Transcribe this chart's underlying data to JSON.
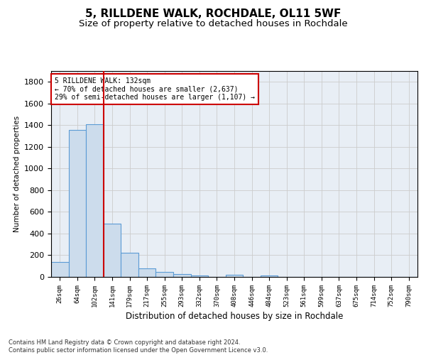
{
  "title": "5, RILLDENE WALK, ROCHDALE, OL11 5WF",
  "subtitle": "Size of property relative to detached houses in Rochdale",
  "xlabel": "Distribution of detached houses by size in Rochdale",
  "ylabel": "Number of detached properties",
  "bar_labels": [
    "26sqm",
    "64sqm",
    "102sqm",
    "141sqm",
    "179sqm",
    "217sqm",
    "255sqm",
    "293sqm",
    "332sqm",
    "370sqm",
    "408sqm",
    "446sqm",
    "484sqm",
    "523sqm",
    "561sqm",
    "599sqm",
    "637sqm",
    "675sqm",
    "714sqm",
    "752sqm",
    "790sqm"
  ],
  "bar_values": [
    135,
    1355,
    1410,
    490,
    225,
    78,
    45,
    28,
    12,
    0,
    18,
    0,
    12,
    0,
    0,
    0,
    0,
    0,
    0,
    0,
    0
  ],
  "bar_color": "#ccdcec",
  "bar_edge_color": "#5b9bd5",
  "vline_color": "#cc0000",
  "annotation_text": "5 RILLDENE WALK: 132sqm\n← 70% of detached houses are smaller (2,637)\n29% of semi-detached houses are larger (1,107) →",
  "annotation_box_color": "#ffffff",
  "annotation_box_edge": "#cc0000",
  "ylim": [
    0,
    1900
  ],
  "yticks": [
    0,
    200,
    400,
    600,
    800,
    1000,
    1200,
    1400,
    1600,
    1800
  ],
  "grid_color": "#cccccc",
  "bg_color": "#e8eef5",
  "footnote": "Contains HM Land Registry data © Crown copyright and database right 2024.\nContains public sector information licensed under the Open Government Licence v3.0.",
  "title_fontsize": 11,
  "subtitle_fontsize": 9.5
}
